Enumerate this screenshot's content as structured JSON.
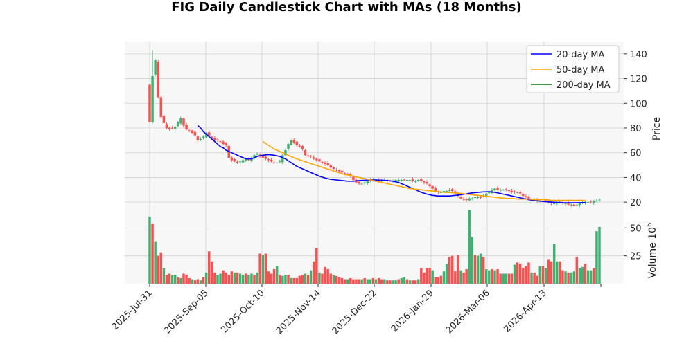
{
  "chart_data": {
    "type": "candlestick",
    "title": "FIG Daily Candlestick Chart with MAs (18 Months)",
    "price_axis": {
      "label": "Price",
      "ticks": [
        20,
        40,
        60,
        80,
        100,
        120,
        140
      ],
      "ylim": [
        10,
        150
      ]
    },
    "volume_axis": {
      "label": "Volume",
      "multiplier": "10",
      "multiplier_exp": "6",
      "ticks": [
        25,
        50
      ],
      "ylim": [
        0,
        62
      ]
    },
    "x_ticks": [
      "2025-Jul-31",
      "2025-Sep-05",
      "2025-Oct-10",
      "2025-Nov-14",
      "2025-Dec-22",
      "2026-Jan-29",
      "2026-Mar-06",
      "2026-Apr-13"
    ],
    "grid": true,
    "legend_placement": "top-right",
    "legend": [
      {
        "name": "20-day MA",
        "color": "#0000ff"
      },
      {
        "name": "50-day MA",
        "color": "#ffa500"
      },
      {
        "name": "200-day MA",
        "color": "#008000"
      }
    ],
    "colors": {
      "up": "#3cb371",
      "down": "#ff4d4d",
      "panel_bg": "#f7f7f7",
      "grid": "#d0d0d0"
    },
    "price_key": [
      [
        0,
        85
      ],
      [
        1,
        122
      ],
      [
        2,
        135
      ],
      [
        3,
        105
      ],
      [
        4,
        89
      ],
      [
        5,
        84
      ],
      [
        6,
        80
      ],
      [
        7,
        79
      ],
      [
        8,
        80
      ],
      [
        9,
        81
      ],
      [
        10,
        85
      ],
      [
        11,
        88
      ],
      [
        12,
        82
      ],
      [
        13,
        79
      ],
      [
        14,
        78
      ],
      [
        15,
        76
      ],
      [
        16,
        74
      ],
      [
        17,
        70
      ],
      [
        18,
        71
      ],
      [
        19,
        73
      ],
      [
        20,
        76
      ],
      [
        21,
        74
      ],
      [
        22,
        72
      ],
      [
        23,
        70
      ],
      [
        24,
        70
      ],
      [
        25,
        69
      ],
      [
        26,
        67
      ],
      [
        27,
        66
      ],
      [
        28,
        56
      ],
      [
        29,
        54
      ],
      [
        30,
        53
      ],
      [
        31,
        52
      ],
      [
        32,
        53
      ],
      [
        33,
        54
      ],
      [
        34,
        55
      ],
      [
        35,
        54
      ],
      [
        36,
        56
      ],
      [
        37,
        58
      ],
      [
        38,
        59
      ],
      [
        39,
        57
      ],
      [
        40,
        56
      ],
      [
        41,
        55
      ],
      [
        42,
        54
      ],
      [
        43,
        53
      ],
      [
        44,
        52
      ],
      [
        45,
        52
      ],
      [
        46,
        53
      ],
      [
        47,
        58
      ],
      [
        48,
        62
      ],
      [
        49,
        67
      ],
      [
        50,
        70
      ],
      [
        51,
        68
      ],
      [
        52,
        66
      ],
      [
        53,
        65
      ],
      [
        54,
        63
      ],
      [
        55,
        58
      ],
      [
        56,
        57
      ],
      [
        57,
        57
      ],
      [
        58,
        55
      ],
      [
        59,
        54
      ],
      [
        60,
        53
      ],
      [
        61,
        52
      ],
      [
        62,
        51
      ],
      [
        63,
        50
      ],
      [
        64,
        48
      ],
      [
        65,
        47
      ],
      [
        66,
        46
      ],
      [
        67,
        45
      ],
      [
        68,
        44
      ],
      [
        69,
        43
      ],
      [
        70,
        42
      ],
      [
        71,
        41
      ],
      [
        72,
        38
      ],
      [
        73,
        36
      ],
      [
        74,
        35
      ],
      [
        75,
        35
      ],
      [
        76,
        36
      ],
      [
        77,
        37
      ],
      [
        78,
        38
      ],
      [
        79,
        38
      ],
      [
        80,
        38
      ],
      [
        81,
        37
      ],
      [
        82,
        38
      ],
      [
        83,
        38
      ],
      [
        84,
        37
      ],
      [
        85,
        37
      ],
      [
        86,
        37
      ],
      [
        87,
        38
      ],
      [
        88,
        38
      ],
      [
        89,
        38
      ],
      [
        90,
        38
      ],
      [
        91,
        38
      ],
      [
        92,
        38
      ],
      [
        93,
        37
      ],
      [
        94,
        37
      ],
      [
        95,
        38
      ],
      [
        96,
        37
      ],
      [
        97,
        36
      ],
      [
        98,
        35
      ],
      [
        99,
        33
      ],
      [
        100,
        31
      ],
      [
        101,
        29
      ],
      [
        102,
        28
      ],
      [
        103,
        28
      ],
      [
        104,
        29
      ],
      [
        105,
        29
      ],
      [
        106,
        30
      ],
      [
        107,
        29
      ],
      [
        108,
        27
      ],
      [
        109,
        25
      ],
      [
        110,
        23
      ],
      [
        111,
        22
      ],
      [
        112,
        22
      ],
      [
        113,
        23
      ],
      [
        114,
        23
      ],
      [
        115,
        24
      ],
      [
        116,
        24
      ],
      [
        117,
        24
      ],
      [
        118,
        25
      ],
      [
        119,
        27
      ],
      [
        120,
        28
      ],
      [
        121,
        30
      ],
      [
        122,
        31
      ],
      [
        123,
        30
      ],
      [
        124,
        30
      ],
      [
        125,
        30
      ],
      [
        126,
        30
      ],
      [
        127,
        29
      ],
      [
        128,
        28
      ],
      [
        129,
        28
      ],
      [
        130,
        28
      ],
      [
        131,
        27
      ],
      [
        132,
        25
      ],
      [
        133,
        24
      ],
      [
        134,
        23
      ],
      [
        135,
        22
      ],
      [
        136,
        22
      ],
      [
        137,
        21
      ],
      [
        138,
        21
      ],
      [
        139,
        21
      ],
      [
        140,
        21
      ],
      [
        141,
        20
      ],
      [
        142,
        19
      ],
      [
        143,
        19
      ],
      [
        144,
        20
      ],
      [
        145,
        20
      ],
      [
        146,
        19
      ],
      [
        147,
        19
      ],
      [
        148,
        18
      ],
      [
        149,
        18
      ],
      [
        150,
        17
      ],
      [
        151,
        18
      ],
      [
        152,
        19
      ],
      [
        153,
        20
      ],
      [
        154,
        20
      ],
      [
        155,
        20
      ],
      [
        156,
        20
      ],
      [
        157,
        21
      ],
      [
        158,
        21
      ],
      [
        159,
        22
      ]
    ],
    "volume_key": [
      [
        0,
        60
      ],
      [
        1,
        54
      ],
      [
        2,
        38
      ],
      [
        3,
        25
      ],
      [
        4,
        28
      ],
      [
        5,
        14
      ],
      [
        6,
        8
      ],
      [
        7,
        9
      ],
      [
        8,
        8
      ],
      [
        9,
        8
      ],
      [
        10,
        6
      ],
      [
        11,
        5
      ],
      [
        12,
        9
      ],
      [
        13,
        8
      ],
      [
        14,
        5
      ],
      [
        15,
        4
      ],
      [
        16,
        3
      ],
      [
        17,
        4
      ],
      [
        18,
        3
      ],
      [
        19,
        6
      ],
      [
        20,
        10
      ],
      [
        21,
        29
      ],
      [
        22,
        20
      ],
      [
        23,
        10
      ],
      [
        24,
        8
      ],
      [
        25,
        9
      ],
      [
        26,
        12
      ],
      [
        27,
        10
      ],
      [
        28,
        8
      ],
      [
        29,
        11
      ],
      [
        30,
        10
      ],
      [
        31,
        10
      ],
      [
        32,
        9
      ],
      [
        33,
        8
      ],
      [
        34,
        9
      ],
      [
        35,
        8
      ],
      [
        36,
        9
      ],
      [
        37,
        8
      ],
      [
        38,
        10
      ],
      [
        39,
        27
      ],
      [
        40,
        26
      ],
      [
        41,
        27
      ],
      [
        42,
        11
      ],
      [
        43,
        9
      ],
      [
        44,
        13
      ],
      [
        45,
        16
      ],
      [
        46,
        8
      ],
      [
        47,
        7
      ],
      [
        48,
        8
      ],
      [
        49,
        8
      ],
      [
        50,
        5
      ],
      [
        51,
        5
      ],
      [
        52,
        5
      ],
      [
        53,
        7
      ],
      [
        54,
        8
      ],
      [
        55,
        9
      ],
      [
        56,
        8
      ],
      [
        57,
        12
      ],
      [
        58,
        20
      ],
      [
        59,
        32
      ],
      [
        60,
        10
      ],
      [
        61,
        9
      ],
      [
        62,
        15
      ],
      [
        63,
        13
      ],
      [
        64,
        9
      ],
      [
        65,
        8
      ],
      [
        66,
        7
      ],
      [
        67,
        6
      ],
      [
        68,
        5
      ],
      [
        69,
        4
      ],
      [
        70,
        4
      ],
      [
        71,
        5
      ],
      [
        72,
        4
      ],
      [
        73,
        4
      ],
      [
        74,
        4
      ],
      [
        75,
        4
      ],
      [
        76,
        5
      ],
      [
        77,
        4
      ],
      [
        78,
        4
      ],
      [
        79,
        5
      ],
      [
        80,
        4
      ],
      [
        81,
        5
      ],
      [
        82,
        4
      ],
      [
        83,
        4
      ],
      [
        84,
        3
      ],
      [
        85,
        3
      ],
      [
        86,
        3
      ],
      [
        87,
        3
      ],
      [
        88,
        4
      ],
      [
        89,
        5
      ],
      [
        90,
        6
      ],
      [
        91,
        4
      ],
      [
        92,
        3
      ],
      [
        93,
        3
      ],
      [
        94,
        3
      ],
      [
        95,
        4
      ],
      [
        96,
        14
      ],
      [
        97,
        10
      ],
      [
        98,
        14
      ],
      [
        99,
        14
      ],
      [
        100,
        12
      ],
      [
        101,
        6
      ],
      [
        102,
        6
      ],
      [
        103,
        7
      ],
      [
        104,
        11
      ],
      [
        105,
        18
      ],
      [
        106,
        24
      ],
      [
        107,
        25
      ],
      [
        108,
        11
      ],
      [
        109,
        26
      ],
      [
        110,
        12
      ],
      [
        111,
        10
      ],
      [
        112,
        13
      ],
      [
        113,
        66
      ],
      [
        114,
        42
      ],
      [
        115,
        26
      ],
      [
        116,
        25
      ],
      [
        117,
        27
      ],
      [
        118,
        24
      ],
      [
        119,
        13
      ],
      [
        120,
        12
      ],
      [
        121,
        13
      ],
      [
        122,
        12
      ],
      [
        123,
        13
      ],
      [
        124,
        9
      ],
      [
        125,
        9
      ],
      [
        126,
        9
      ],
      [
        127,
        9
      ],
      [
        128,
        9
      ],
      [
        129,
        17
      ],
      [
        130,
        19
      ],
      [
        131,
        18
      ],
      [
        132,
        14
      ],
      [
        133,
        16
      ],
      [
        134,
        19
      ],
      [
        135,
        10
      ],
      [
        136,
        10
      ],
      [
        137,
        7
      ],
      [
        138,
        16
      ],
      [
        139,
        16
      ],
      [
        140,
        14
      ],
      [
        141,
        22
      ],
      [
        142,
        20
      ],
      [
        143,
        36
      ],
      [
        144,
        20
      ],
      [
        145,
        20
      ],
      [
        146,
        12
      ],
      [
        147,
        11
      ],
      [
        148,
        10
      ],
      [
        149,
        10
      ],
      [
        150,
        11
      ],
      [
        151,
        24
      ],
      [
        152,
        14
      ],
      [
        153,
        15
      ],
      [
        154,
        18
      ],
      [
        155,
        12
      ],
      [
        156,
        12
      ],
      [
        157,
        14
      ],
      [
        158,
        47
      ],
      [
        159,
        51
      ]
    ],
    "ma20": [
      [
        17,
        82
      ],
      [
        18,
        80
      ],
      [
        19,
        77
      ],
      [
        20,
        75
      ],
      [
        21,
        73
      ],
      [
        22,
        71
      ],
      [
        23,
        69
      ],
      [
        24,
        67
      ],
      [
        25,
        65
      ],
      [
        26,
        64
      ],
      [
        27,
        62
      ],
      [
        28,
        61
      ],
      [
        29,
        60
      ],
      [
        30,
        59
      ],
      [
        31,
        58
      ],
      [
        32,
        57
      ],
      [
        33,
        56
      ],
      [
        34,
        55
      ],
      [
        35,
        55
      ],
      [
        36,
        55
      ],
      [
        37,
        56
      ],
      [
        38,
        57
      ],
      [
        39,
        57.5
      ],
      [
        40,
        58
      ],
      [
        42,
        58.5
      ],
      [
        44,
        58
      ],
      [
        46,
        57
      ],
      [
        48,
        55
      ],
      [
        50,
        52
      ],
      [
        52,
        49
      ],
      [
        54,
        47
      ],
      [
        56,
        45
      ],
      [
        58,
        43
      ],
      [
        60,
        41
      ],
      [
        62,
        39.5
      ],
      [
        64,
        38.5
      ],
      [
        66,
        38
      ],
      [
        68,
        37.5
      ],
      [
        70,
        37
      ],
      [
        72,
        37
      ],
      [
        74,
        37.5
      ],
      [
        76,
        37.8
      ],
      [
        78,
        38
      ],
      [
        80,
        38
      ],
      [
        82,
        37.8
      ],
      [
        84,
        37.5
      ],
      [
        86,
        37
      ],
      [
        88,
        36
      ],
      [
        90,
        34
      ],
      [
        92,
        32
      ],
      [
        94,
        30
      ],
      [
        96,
        28
      ],
      [
        98,
        26.5
      ],
      [
        100,
        25.5
      ],
      [
        102,
        25
      ],
      [
        104,
        25
      ],
      [
        106,
        25
      ],
      [
        108,
        25.5
      ],
      [
        110,
        26
      ],
      [
        112,
        26.8
      ],
      [
        114,
        27.5
      ],
      [
        116,
        28
      ],
      [
        118,
        28.3
      ],
      [
        120,
        28.5
      ],
      [
        122,
        28
      ],
      [
        124,
        27
      ],
      [
        126,
        26
      ],
      [
        128,
        25
      ],
      [
        130,
        24
      ],
      [
        132,
        23
      ],
      [
        134,
        22
      ],
      [
        136,
        21.3
      ],
      [
        138,
        20.8
      ],
      [
        140,
        20.3
      ],
      [
        142,
        20
      ],
      [
        144,
        19.8
      ],
      [
        146,
        19.6
      ],
      [
        148,
        19.5
      ],
      [
        150,
        19.5
      ],
      [
        152,
        19.6
      ],
      [
        154,
        19.7
      ]
    ],
    "ma50": [
      [
        40,
        69
      ],
      [
        42,
        66
      ],
      [
        44,
        63
      ],
      [
        46,
        61
      ],
      [
        48,
        59
      ],
      [
        50,
        57
      ],
      [
        52,
        55
      ],
      [
        54,
        53.5
      ],
      [
        56,
        52
      ],
      [
        58,
        50.5
      ],
      [
        60,
        49
      ],
      [
        62,
        47.5
      ],
      [
        64,
        46
      ],
      [
        66,
        44.5
      ],
      [
        68,
        43
      ],
      [
        70,
        42
      ],
      [
        72,
        41
      ],
      [
        74,
        40
      ],
      [
        76,
        39
      ],
      [
        78,
        38
      ],
      [
        80,
        37
      ],
      [
        82,
        36
      ],
      [
        84,
        35
      ],
      [
        86,
        34
      ],
      [
        88,
        33
      ],
      [
        90,
        32
      ],
      [
        92,
        31
      ],
      [
        94,
        30.5
      ],
      [
        96,
        30
      ],
      [
        98,
        29.5
      ],
      [
        100,
        29
      ],
      [
        102,
        28.5
      ],
      [
        104,
        28
      ],
      [
        106,
        27.8
      ],
      [
        108,
        27.5
      ],
      [
        110,
        27
      ],
      [
        112,
        26.5
      ],
      [
        114,
        26
      ],
      [
        116,
        25.5
      ],
      [
        118,
        25
      ],
      [
        120,
        24.5
      ],
      [
        122,
        24
      ],
      [
        124,
        23.5
      ],
      [
        126,
        23
      ],
      [
        128,
        23
      ],
      [
        130,
        22.5
      ],
      [
        132,
        22.5
      ],
      [
        134,
        22.5
      ],
      [
        136,
        22
      ],
      [
        138,
        22
      ],
      [
        140,
        22
      ],
      [
        142,
        21.5
      ],
      [
        144,
        21.5
      ],
      [
        146,
        21.5
      ],
      [
        148,
        21.5
      ],
      [
        150,
        21.5
      ],
      [
        152,
        21.5
      ],
      [
        154,
        21.5
      ]
    ]
  }
}
